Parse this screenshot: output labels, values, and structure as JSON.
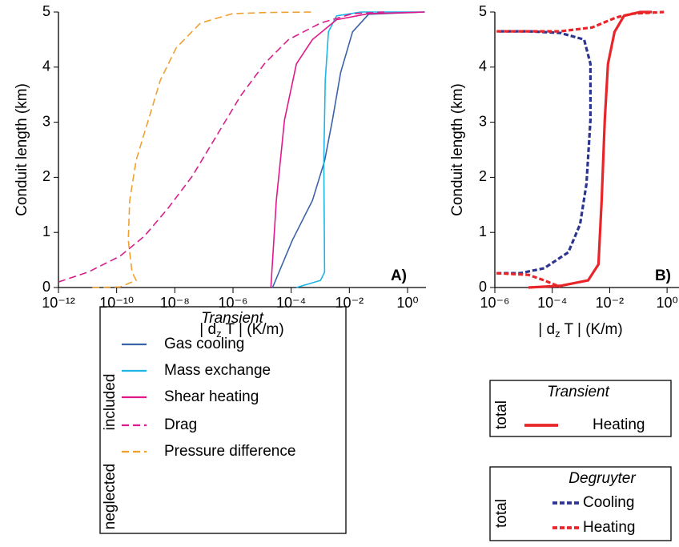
{
  "chart_data": [
    {
      "type": "line",
      "panel_label": "A)",
      "ylabel": "Conduit length (km)",
      "xlabel": [
        "| d",
        "z",
        " T | (K/m)"
      ],
      "xscale": "log",
      "xlim": [
        1e-12,
        4.3
      ],
      "ylim": [
        0,
        5
      ],
      "xticks": [
        {
          "value": 1e-12,
          "label": "10⁻¹²"
        },
        {
          "value": 1e-10,
          "label": "10⁻¹⁰"
        },
        {
          "value": 1e-08,
          "label": "10⁻⁸"
        },
        {
          "value": 1e-06,
          "label": "10⁻⁶"
        },
        {
          "value": 0.0001,
          "label": "10⁻⁴"
        },
        {
          "value": 0.01,
          "label": "10⁻²"
        },
        {
          "value": 1,
          "label": "10⁰"
        }
      ],
      "yticks": [
        0,
        1,
        2,
        3,
        4,
        5
      ],
      "legends": [
        {
          "title": "Transient",
          "groups": [
            {
              "label": "included",
              "series": [
                {
                  "name": "Gas cooling",
                  "color": "#3a63a8",
                  "dashed": false,
                  "x": [
                    2.29e-05,
                    0.00011,
                    0.000537,
                    0.00141,
                    0.00263,
                    0.00501,
                    0.0129,
                    0.0457,
                    3.89
                  ],
                  "values": [
                    0,
                    0.86,
                    1.58,
                    2.3,
                    3.04,
                    3.9,
                    4.64,
                    4.96,
                    5
                  ]
                },
                {
                  "name": "Mass exchange",
                  "color": "#1eb4e6",
                  "dashed": false,
                  "x": [
                    0.000151,
                    0.00102,
                    0.00141,
                    0.00132,
                    0.00148,
                    0.00191,
                    0.00363,
                    0.0245,
                    3.89
                  ],
                  "values": [
                    0,
                    0.13,
                    0.28,
                    2.31,
                    3.76,
                    4.64,
                    4.93,
                    5,
                    5
                  ]
                },
                {
                  "name": "Shear heating",
                  "color": "#e0198a",
                  "dashed": false,
                  "x": [
                    2e-05,
                    3.09e-05,
                    5.89e-05,
                    0.000151,
                    0.000537,
                    0.00363,
                    0.0457,
                    3.89
                  ],
                  "values": [
                    0,
                    1.58,
                    3.04,
                    4.06,
                    4.5,
                    4.86,
                    4.97,
                    5
                  ]
                }
              ]
            },
            {
              "label": "neglected",
              "series": [
                {
                  "name": "Drag",
                  "color": "#d6218c",
                  "dashed": true,
                  "x": [
                    1e-12,
                    1.05e-11,
                    1.32e-10,
                    8.91e-10,
                    5.89e-09,
                    3.98e-08,
                    2.69e-07,
                    1.78e-06,
                    1.2e-05,
                    8.13e-05,
                    0.00102,
                    0.0129,
                    0.162
                  ],
                  "values": [
                    0.1,
                    0.28,
                    0.57,
                    0.93,
                    1.44,
                    2.02,
                    2.75,
                    3.47,
                    4.06,
                    4.5,
                    4.8,
                    4.97,
                    5
                  ]
                },
                {
                  "name": "Pressure difference",
                  "color": "#f0a030",
                  "dashed": true,
                  "x": [
                    1.45e-11,
                    1.32e-10,
                    4.68e-10,
                    3.39e-10,
                    2.51e-10,
                    2.82e-10,
                    4.68e-10,
                    1.23e-09,
                    3.16e-09,
                    1.12e-08,
                    7.59e-08,
                    9.55e-07,
                    1.2e-05,
                    0.000537
                  ],
                  "values": [
                    0,
                    0.01,
                    0.13,
                    0.28,
                    0.86,
                    1.58,
                    2.31,
                    3.04,
                    3.76,
                    4.35,
                    4.8,
                    4.97,
                    4.99,
                    5
                  ]
                }
              ]
            }
          ]
        }
      ]
    },
    {
      "type": "line",
      "panel_label": "B)",
      "ylabel": "Conduit length (km)",
      "xlabel": [
        "| d",
        "z",
        " T | (K/m)"
      ],
      "xscale": "log",
      "xlim": [
        1e-06,
        2.6
      ],
      "ylim": [
        0,
        5
      ],
      "xticks": [
        {
          "value": 1e-06,
          "label": "10⁻⁶"
        },
        {
          "value": 0.0001,
          "label": "10⁻⁴"
        },
        {
          "value": 0.01,
          "label": "10⁻²"
        },
        {
          "value": 1,
          "label": "10⁰"
        }
      ],
      "yticks": [
        0,
        1,
        2,
        3,
        4,
        5
      ],
      "legends": [
        {
          "title": "Transient",
          "groups": [
            {
              "label": "total",
              "series": [
                {
                  "name": "Heating",
                  "color": "#e8262a",
                  "dashed": false,
                  "x": [
                    1.48e-05,
                    0.000191,
                    0.00178,
                    0.00407,
                    0.00525,
                    0.00676,
                    0.00871,
                    0.0148,
                    0.0316,
                    0.115,
                    0.295
                  ],
                  "values": [
                    0,
                    0.03,
                    0.13,
                    0.42,
                    1.58,
                    3.04,
                    4.06,
                    4.64,
                    4.93,
                    5,
                    5
                  ]
                }
              ]
            }
          ]
        },
        {
          "title": "Degruyter",
          "groups": [
            {
              "label": "total",
              "series": [
                {
                  "name": "Cooling",
                  "color": "#2c3590",
                  "dashed": true,
                  "x": [
                    1.15e-06,
                    7.76e-06,
                    5.25e-05,
                    0.000363,
                    0.000933,
                    0.00155,
                    0.00214,
                    0.00214,
                    0.00129,
                    0.000191,
                    1.48e-05,
                    1.15e-06
                  ],
                  "values": [
                    0.26,
                    0.26,
                    0.35,
                    0.64,
                    1.15,
                    1.88,
                    3.04,
                    4.06,
                    4.5,
                    4.62,
                    4.65,
                    4.65
                  ]
                },
                {
                  "name": "Heating",
                  "color": "#e8262a",
                  "dashed": true,
                  "x": [
                    1.15e-06,
                    1.48e-05,
                    5.25e-05,
                    0.000191,
                    null,
                    1.15e-06,
                    0.000191,
                    0.00245,
                    0.0166,
                    0.0603,
                    0.776
                  ],
                  "values": [
                    0.26,
                    0.23,
                    0.13,
                    0.01,
                    null,
                    4.65,
                    4.65,
                    4.72,
                    4.9,
                    4.97,
                    5
                  ]
                }
              ]
            }
          ]
        }
      ]
    }
  ]
}
